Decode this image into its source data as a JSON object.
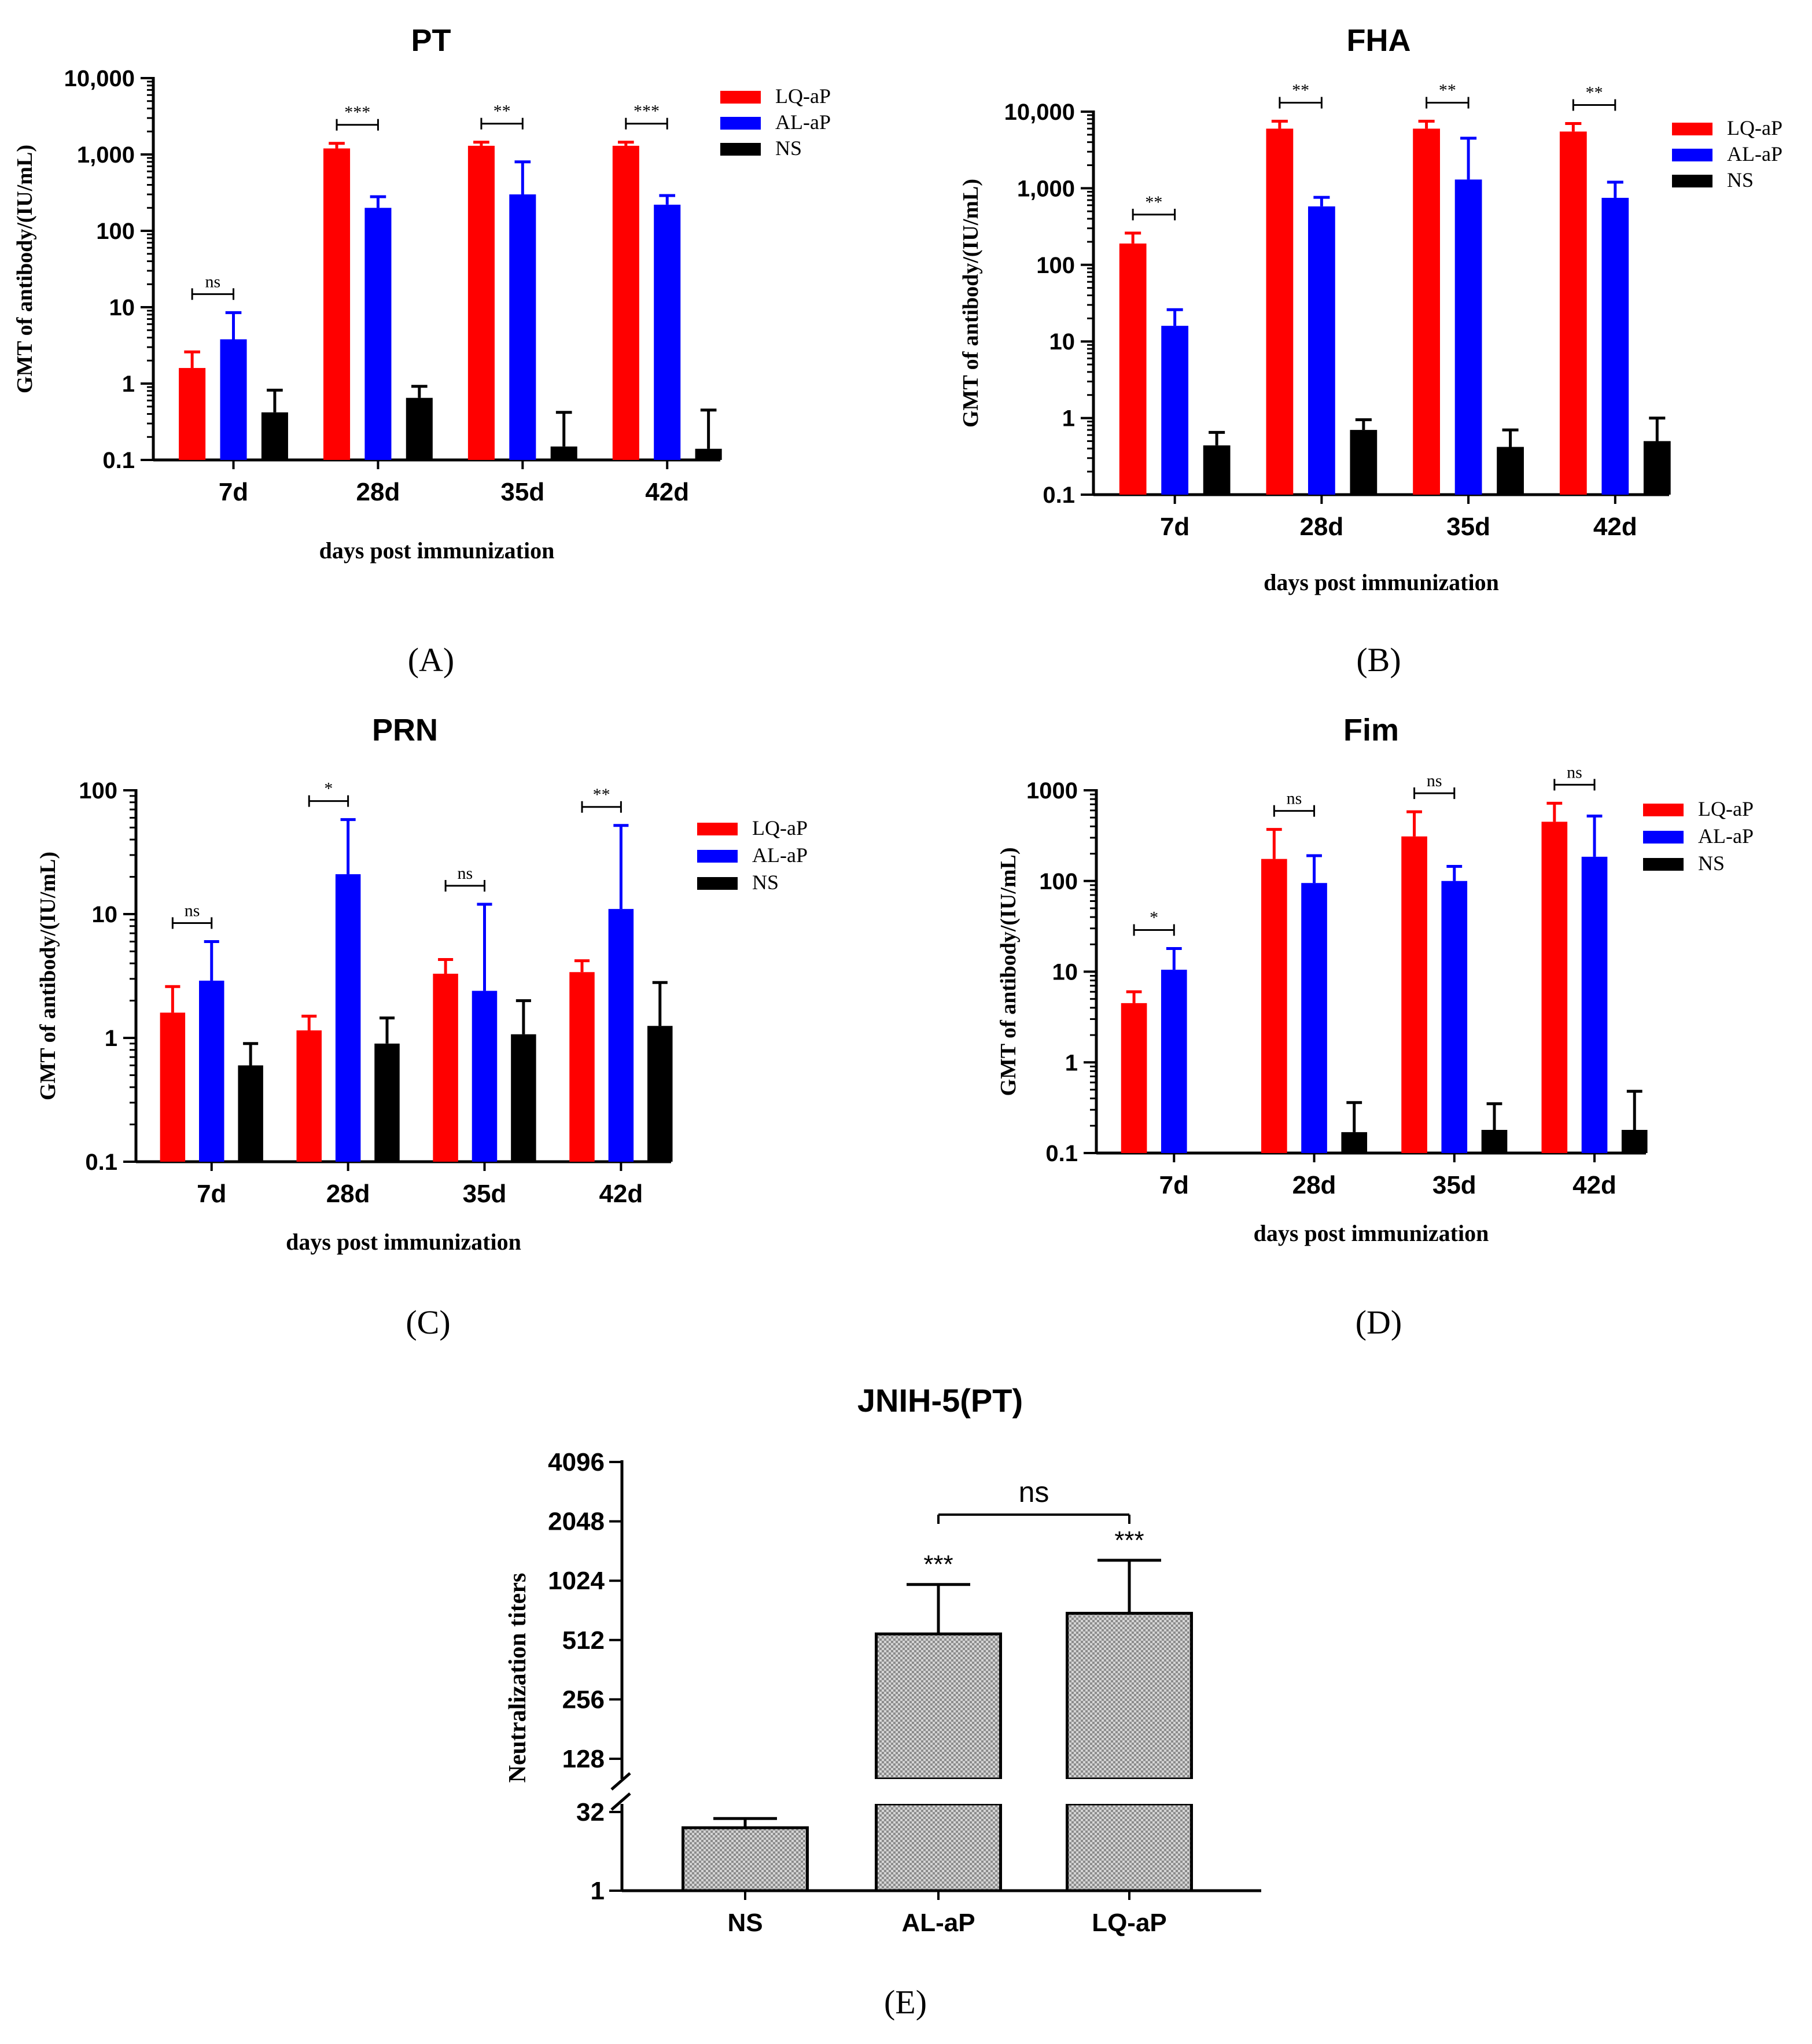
{
  "chart_data": [
    {
      "panel": "A",
      "type": "bar",
      "title": "PT",
      "scale": "log",
      "ylim": [
        0.1,
        10000
      ],
      "yticks": [
        "0.1",
        "1",
        "10",
        "100",
        "1,000",
        "10,000"
      ],
      "xlabel": "days post immunization",
      "ylabel": "GMT  of antibody/(IU/mL)",
      "categories": [
        "7d",
        "28d",
        "35d",
        "42d"
      ],
      "series": [
        {
          "name": "LQ-aP",
          "color": "#ff0000",
          "values": [
            1.6,
            1200,
            1300,
            1300
          ],
          "errors": [
            2.6,
            1400,
            1450,
            1450
          ]
        },
        {
          "name": "AL-aP",
          "color": "#0000ff",
          "values": [
            3.8,
            200,
            300,
            220
          ],
          "errors": [
            8.5,
            280,
            800,
            290
          ]
        },
        {
          "name": "NS",
          "color": "#000000",
          "values": [
            0.42,
            0.65,
            0.15,
            0.14
          ],
          "errors": [
            0.82,
            0.92,
            0.42,
            0.45
          ]
        }
      ],
      "significance": [
        "ns",
        "***",
        "**",
        "***"
      ],
      "panel_label": "(A)"
    },
    {
      "panel": "B",
      "type": "bar",
      "title": "FHA",
      "scale": "log",
      "ylim": [
        0.1,
        10000
      ],
      "yticks": [
        "0.1",
        "1",
        "10",
        "100",
        "1,000",
        "10,000"
      ],
      "xlabel": "days post immunization",
      "ylabel": "GMT  of antibody/(IU/mL)",
      "categories": [
        "7d",
        "28d",
        "35d",
        "42d"
      ],
      "series": [
        {
          "name": "LQ-aP",
          "color": "#ff0000",
          "values": [
            190,
            6000,
            6000,
            5500
          ],
          "errors": [
            260,
            7500,
            7500,
            7000
          ]
        },
        {
          "name": "AL-aP",
          "color": "#0000ff",
          "values": [
            16,
            580,
            1300,
            750
          ],
          "errors": [
            26,
            760,
            4500,
            1200
          ]
        },
        {
          "name": "NS",
          "color": "#000000",
          "values": [
            0.44,
            0.7,
            0.42,
            0.5
          ],
          "errors": [
            0.65,
            0.95,
            0.7,
            1.0
          ]
        }
      ],
      "significance": [
        "**",
        "**",
        "**",
        "**"
      ],
      "panel_label": "(B)"
    },
    {
      "panel": "C",
      "type": "bar",
      "title": "PRN",
      "scale": "log",
      "ylim": [
        0.1,
        100
      ],
      "yticks": [
        "0.1",
        "1",
        "10",
        "100"
      ],
      "xlabel": "days post immunization",
      "ylabel": "GMT  of antibody/(IU/mL)",
      "categories": [
        "7d",
        "28d",
        "35d",
        "42d"
      ],
      "series": [
        {
          "name": "LQ-aP",
          "color": "#ff0000",
          "values": [
            1.6,
            1.15,
            3.3,
            3.4
          ],
          "errors": [
            2.6,
            1.5,
            4.3,
            4.2
          ]
        },
        {
          "name": "AL-aP",
          "color": "#0000ff",
          "values": [
            2.9,
            21,
            2.4,
            11
          ],
          "errors": [
            6.0,
            58,
            12,
            52
          ]
        },
        {
          "name": "NS",
          "color": "#000000",
          "values": [
            0.6,
            0.9,
            1.07,
            1.25
          ],
          "errors": [
            0.9,
            1.45,
            2.0,
            2.8
          ]
        }
      ],
      "significance": [
        "ns",
        "*",
        "ns",
        "**"
      ],
      "panel_label": "(C)"
    },
    {
      "panel": "D",
      "type": "bar",
      "title": "Fim",
      "scale": "log",
      "ylim": [
        0.1,
        1000
      ],
      "yticks": [
        "0.1",
        "1",
        "10",
        "100",
        "1000"
      ],
      "xlabel": "days post immunization",
      "ylabel": "GMT  of antibody/(IU/mL)",
      "categories": [
        "7d",
        "28d",
        "35d",
        "42d"
      ],
      "series": [
        {
          "name": "LQ-aP",
          "color": "#ff0000",
          "values": [
            4.5,
            175,
            310,
            450
          ],
          "errors": [
            6.0,
            370,
            580,
            720
          ]
        },
        {
          "name": "AL-aP",
          "color": "#0000ff",
          "values": [
            10.5,
            95,
            100,
            185
          ],
          "errors": [
            18,
            190,
            145,
            520
          ]
        },
        {
          "name": "NS",
          "color": "#000000",
          "values": [
            null,
            0.17,
            0.18,
            0.18
          ],
          "errors": [
            null,
            0.36,
            0.35,
            0.48
          ]
        }
      ],
      "significance": [
        "*",
        "ns",
        "ns",
        "ns"
      ],
      "panel_label": "(D)"
    },
    {
      "panel": "E",
      "type": "bar",
      "title": "JNIH-5(PT)",
      "scale": "log2-broken",
      "ylim": [
        1,
        4096
      ],
      "yticks": [
        "1",
        "32",
        "128",
        "256",
        "512",
        "1024",
        "2048",
        "4096"
      ],
      "xlabel": "",
      "ylabel": "Neutralization titers",
      "categories": [
        "NS",
        "AL-aP",
        "LQ-aP"
      ],
      "values": [
        16,
        550,
        700
      ],
      "errors": [
        24,
        980,
        1300
      ],
      "bar_labels": [
        "",
        "***",
        "***"
      ],
      "comparison": {
        "from": "AL-aP",
        "to": "LQ-aP",
        "label": "ns"
      },
      "panel_label": "(E)"
    }
  ]
}
